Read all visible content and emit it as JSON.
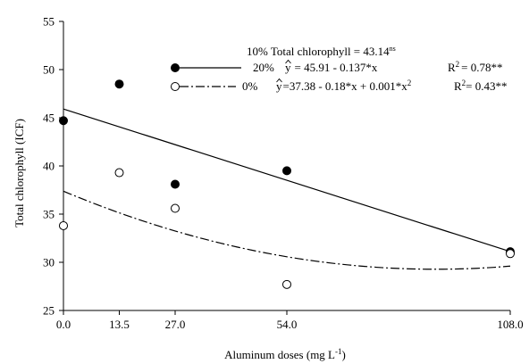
{
  "chart_data": {
    "type": "scatter",
    "xlabel": "Aluminum doses (mg L",
    "xlabel_sup": "-1",
    "xlabel_tail": ")",
    "ylabel": "Total chlorophyll (ICF)",
    "x_ticks": [
      0,
      13.5,
      27,
      54,
      108
    ],
    "x_tick_labels": [
      "0.0",
      "13.5",
      "27.0",
      "54.0",
      "108.0"
    ],
    "y_ticks": [
      25,
      30,
      35,
      40,
      45,
      50,
      55
    ],
    "y_tick_labels": [
      "25",
      "30",
      "35",
      "40",
      "45",
      "50",
      "55"
    ],
    "xlim": [
      0,
      108
    ],
    "ylim": [
      25,
      55
    ],
    "grid": false,
    "legend_position": "top-right",
    "annotation": {
      "text": "10% Total chlorophyll = 43.14",
      "sup": "ns"
    },
    "series": [
      {
        "name": "20%",
        "marker": "filled-circle",
        "color": "#000000",
        "x": [
          0,
          13.5,
          27,
          54,
          108
        ],
        "y": [
          44.7,
          48.5,
          38.1,
          39.5,
          31.1
        ],
        "fit": {
          "type": "linear",
          "intercept": 45.91,
          "b1": -0.137,
          "line_style": "solid",
          "eq_hat": "y",
          "eq_rest": "= 45.91 - 0.137*x",
          "r2_label": "R",
          "r2_sup": "2",
          "r2_value": "= 0.78**"
        }
      },
      {
        "name": "0%",
        "marker": "open-circle",
        "color": "#000000",
        "x": [
          0,
          13.5,
          27,
          54,
          108
        ],
        "y": [
          33.8,
          39.3,
          35.6,
          27.7,
          30.9
        ],
        "fit": {
          "type": "quadratic",
          "intercept": 37.38,
          "b1": -0.18,
          "b2": 0.001,
          "line_style": "dash-dot",
          "eq_hat": "y",
          "eq_rest": "=37.38 - 0.18*x + 0.001*x",
          "eq_sup": "2",
          "r2_label": "R",
          "r2_sup": "2",
          "r2_value": "= 0.43**"
        }
      }
    ]
  }
}
